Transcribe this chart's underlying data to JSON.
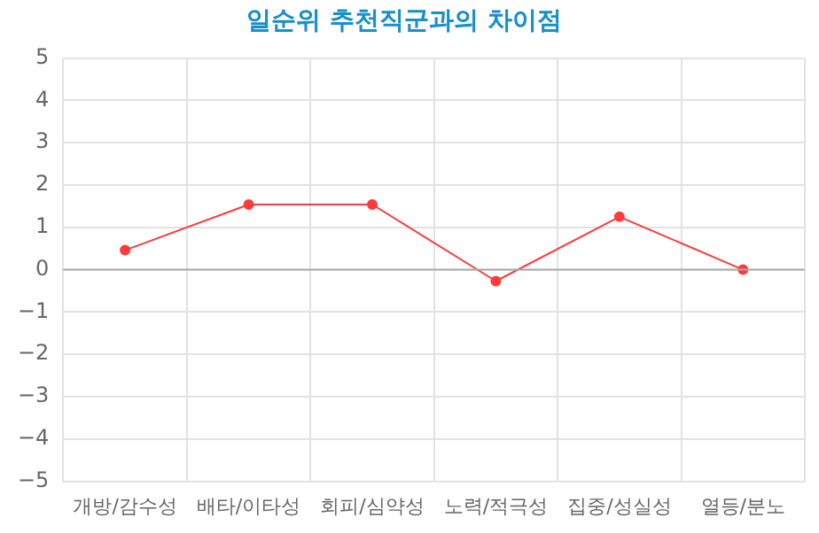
{
  "chart_data": {
    "type": "line",
    "title": "일순위 추천직군과의 차이점",
    "categories": [
      "개방/감수성",
      "배타/이타성",
      "회피/심약성",
      "노력/적극성",
      "집중/성실성",
      "열등/분노"
    ],
    "series": [
      {
        "color": "#ff3b3b",
        "values": [
          0.46,
          1.54,
          1.54,
          -0.27,
          1.25,
          0
        ]
      }
    ],
    "ylim": [
      -5,
      5
    ],
    "yticks": [
      -5,
      -4,
      -3,
      -2,
      -1,
      0,
      1,
      2,
      3,
      4,
      5
    ],
    "ref_lines": [
      {
        "axis": "y",
        "value": 0,
        "color": "#aaaaaa"
      }
    ],
    "grid": true,
    "legend": false,
    "marker": "circle",
    "line_style": "solid"
  }
}
